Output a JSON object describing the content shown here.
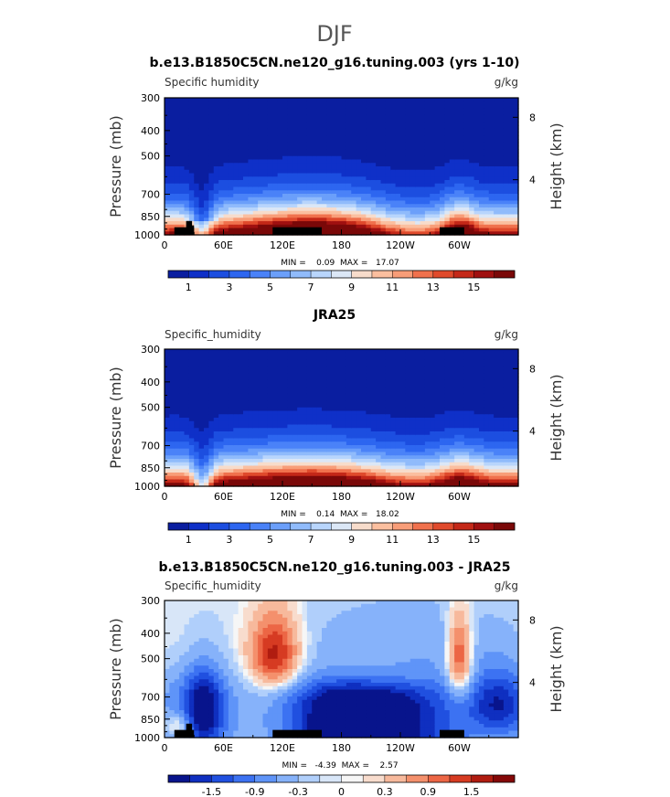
{
  "figure_title": "DJF",
  "chart_data": [
    {
      "type": "heatmap",
      "title": "b.e13.B1850C5CN.ne120_g16.tuning.003 (yrs 1-10)",
      "subtitle_left": "Specific humidity",
      "units": "g/kg",
      "ylabel": "Pressure (mb)",
      "ylabel_right": "Height (km)",
      "x_ticks": [
        "0",
        "60E",
        "120E",
        "180",
        "120W",
        "60W"
      ],
      "y_ticks": [
        "300",
        "400",
        "500",
        "700",
        "850",
        "1000"
      ],
      "height_ticks": [
        "8",
        "4"
      ],
      "stats": "MIN =    0.09  MAX =   17.07",
      "min": 0.09,
      "max": 17.07,
      "colorbar_ticks": [
        "1",
        "3",
        "5",
        "7",
        "9",
        "11",
        "13",
        "15"
      ],
      "colorbar_levels": [
        1,
        2,
        3,
        4,
        5,
        6,
        7,
        8,
        9,
        10,
        11,
        12,
        13,
        14,
        15,
        16
      ]
    },
    {
      "type": "heatmap",
      "title": "JRA25",
      "subtitle_left": "Specific_humidity",
      "units": "g/kg",
      "ylabel": "Pressure (mb)",
      "ylabel_right": "Height (km)",
      "x_ticks": [
        "0",
        "60E",
        "120E",
        "180",
        "120W",
        "60W"
      ],
      "y_ticks": [
        "300",
        "400",
        "500",
        "700",
        "850",
        "1000"
      ],
      "height_ticks": [
        "8",
        "4"
      ],
      "stats": "MIN =    0.14  MAX =   18.02",
      "min": 0.14,
      "max": 18.02,
      "colorbar_ticks": [
        "1",
        "3",
        "5",
        "7",
        "9",
        "11",
        "13",
        "15"
      ],
      "colorbar_levels": [
        1,
        2,
        3,
        4,
        5,
        6,
        7,
        8,
        9,
        10,
        11,
        12,
        13,
        14,
        15,
        16
      ]
    },
    {
      "type": "heatmap",
      "title": "b.e13.B1850C5CN.ne120_g16.tuning.003 - JRA25",
      "subtitle_left": "Specific_humidity",
      "units": "g/kg",
      "ylabel": "Pressure (mb)",
      "ylabel_right": "Height (km)",
      "x_ticks": [
        "0",
        "60E",
        "120E",
        "180",
        "120W",
        "60W"
      ],
      "y_ticks": [
        "300",
        "400",
        "500",
        "700",
        "850",
        "1000"
      ],
      "height_ticks": [
        "8",
        "4"
      ],
      "stats": "MIN =   -4.39  MAX =    2.57",
      "min": -4.39,
      "max": 2.57,
      "colorbar_ticks": [
        "-1.5",
        "-0.9",
        "-0.3",
        "0",
        "0.3",
        "0.9",
        "1.5"
      ],
      "colorbar_levels": [
        -1.8,
        -1.5,
        -1.2,
        -0.9,
        -0.6,
        -0.3,
        -0.1,
        0,
        0.1,
        0.3,
        0.6,
        0.9,
        1.2,
        1.5,
        1.8
      ]
    }
  ],
  "colors": {
    "seq": [
      "#0a1ea0",
      "#0f30c8",
      "#1c4ee0",
      "#2d66f0",
      "#4a82f8",
      "#6b9ffa",
      "#90bbfb",
      "#b8d5fc",
      "#dbe7f6",
      "#f7dccb",
      "#fbbf9f",
      "#f89d78",
      "#f0714d",
      "#e04a2c",
      "#c42818",
      "#a01010",
      "#7a0808"
    ],
    "div": [
      "#08148c",
      "#0f2fc0",
      "#2050e0",
      "#3c72f2",
      "#5f94f8",
      "#86b2fa",
      "#b0cffb",
      "#d8e6f8",
      "#f6f6f6",
      "#f8dccd",
      "#f7b99c",
      "#f4906c",
      "#ec6645",
      "#d63b22",
      "#b01c10",
      "#850808"
    ],
    "land": "#000000"
  }
}
